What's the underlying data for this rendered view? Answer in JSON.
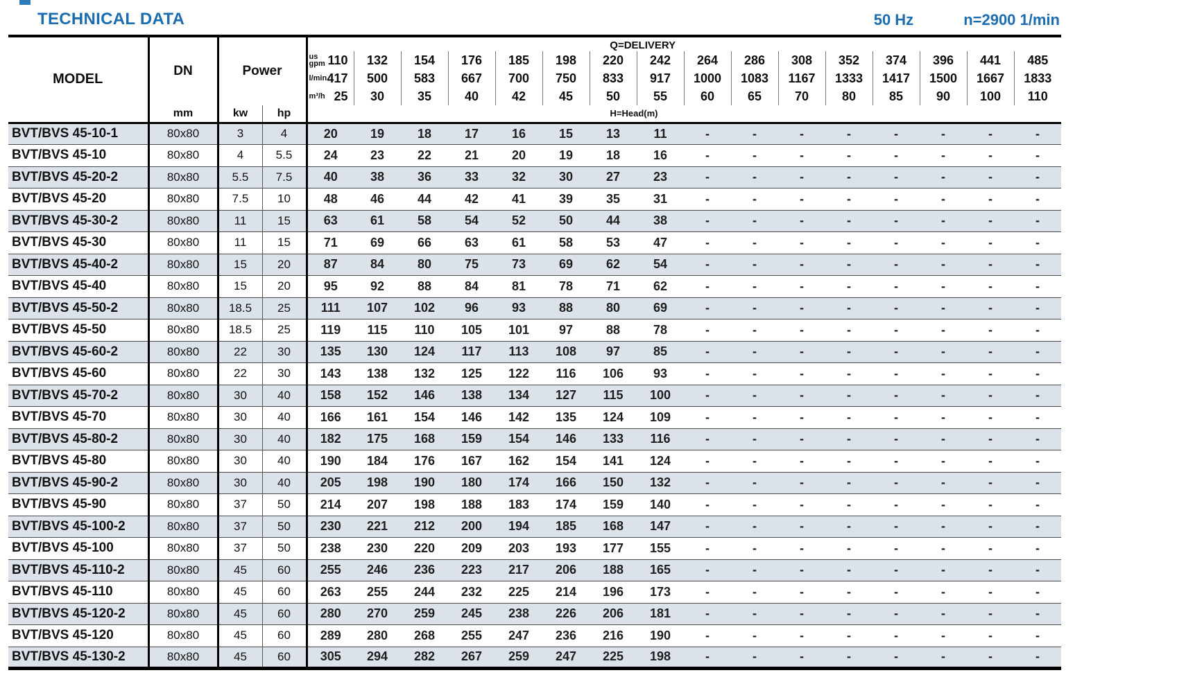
{
  "page": {
    "title": "TECHNICAL DATA",
    "frequency": "50 Hz",
    "speed": "n=2900 1/min"
  },
  "table": {
    "headers": {
      "model": "MODEL",
      "dn": "DN",
      "dn_unit": "mm",
      "power": "Power",
      "power_unit_kw": "kw",
      "power_unit_hp": "hp",
      "delivery": "Q=DELIVERY",
      "head": "H=Head(m)"
    },
    "delivery_units": [
      {
        "label": "us gpm",
        "values": [
          "110",
          "132",
          "154",
          "176",
          "185",
          "198",
          "220",
          "242",
          "264",
          "286",
          "308",
          "352",
          "374",
          "396",
          "441",
          "485"
        ]
      },
      {
        "label": "l/min",
        "values": [
          "417",
          "500",
          "583",
          "667",
          "700",
          "750",
          "833",
          "917",
          "1000",
          "1083",
          "1167",
          "1333",
          "1417",
          "1500",
          "1667",
          "1833"
        ]
      },
      {
        "label": "m³/h",
        "values": [
          "25",
          "30",
          "35",
          "40",
          "42",
          "45",
          "50",
          "55",
          "60",
          "65",
          "70",
          "80",
          "85",
          "90",
          "100",
          "110"
        ]
      }
    ],
    "rows": [
      {
        "model": "BVT/BVS 45-10-1",
        "dn": "80x80",
        "kw": "3",
        "hp": "4",
        "heads": [
          "20",
          "19",
          "18",
          "17",
          "16",
          "15",
          "13",
          "11",
          "-",
          "-",
          "-",
          "-",
          "-",
          "-",
          "-",
          "-"
        ]
      },
      {
        "model": "BVT/BVS 45-10",
        "dn": "80x80",
        "kw": "4",
        "hp": "5.5",
        "heads": [
          "24",
          "23",
          "22",
          "21",
          "20",
          "19",
          "18",
          "16",
          "-",
          "-",
          "-",
          "-",
          "-",
          "-",
          "-",
          "-"
        ]
      },
      {
        "model": "BVT/BVS 45-20-2",
        "dn": "80x80",
        "kw": "5.5",
        "hp": "7.5",
        "heads": [
          "40",
          "38",
          "36",
          "33",
          "32",
          "30",
          "27",
          "23",
          "-",
          "-",
          "-",
          "-",
          "-",
          "-",
          "-",
          "-"
        ]
      },
      {
        "model": "BVT/BVS 45-20",
        "dn": "80x80",
        "kw": "7.5",
        "hp": "10",
        "heads": [
          "48",
          "46",
          "44",
          "42",
          "41",
          "39",
          "35",
          "31",
          "-",
          "-",
          "-",
          "-",
          "-",
          "-",
          "-",
          "-"
        ]
      },
      {
        "model": "BVT/BVS 45-30-2",
        "dn": "80x80",
        "kw": "11",
        "hp": "15",
        "heads": [
          "63",
          "61",
          "58",
          "54",
          "52",
          "50",
          "44",
          "38",
          "-",
          "-",
          "-",
          "-",
          "-",
          "-",
          "-",
          "-"
        ]
      },
      {
        "model": "BVT/BVS 45-30",
        "dn": "80x80",
        "kw": "11",
        "hp": "15",
        "heads": [
          "71",
          "69",
          "66",
          "63",
          "61",
          "58",
          "53",
          "47",
          "-",
          "-",
          "-",
          "-",
          "-",
          "-",
          "-",
          "-"
        ]
      },
      {
        "model": "BVT/BVS 45-40-2",
        "dn": "80x80",
        "kw": "15",
        "hp": "20",
        "heads": [
          "87",
          "84",
          "80",
          "75",
          "73",
          "69",
          "62",
          "54",
          "-",
          "-",
          "-",
          "-",
          "-",
          "-",
          "-",
          "-"
        ]
      },
      {
        "model": "BVT/BVS 45-40",
        "dn": "80x80",
        "kw": "15",
        "hp": "20",
        "heads": [
          "95",
          "92",
          "88",
          "84",
          "81",
          "78",
          "71",
          "62",
          "-",
          "-",
          "-",
          "-",
          "-",
          "-",
          "-",
          "-"
        ]
      },
      {
        "model": "BVT/BVS 45-50-2",
        "dn": "80x80",
        "kw": "18.5",
        "hp": "25",
        "heads": [
          "111",
          "107",
          "102",
          "96",
          "93",
          "88",
          "80",
          "69",
          "-",
          "-",
          "-",
          "-",
          "-",
          "-",
          "-",
          "-"
        ]
      },
      {
        "model": "BVT/BVS 45-50",
        "dn": "80x80",
        "kw": "18.5",
        "hp": "25",
        "heads": [
          "119",
          "115",
          "110",
          "105",
          "101",
          "97",
          "88",
          "78",
          "-",
          "-",
          "-",
          "-",
          "-",
          "-",
          "-",
          "-"
        ]
      },
      {
        "model": "BVT/BVS 45-60-2",
        "dn": "80x80",
        "kw": "22",
        "hp": "30",
        "heads": [
          "135",
          "130",
          "124",
          "117",
          "113",
          "108",
          "97",
          "85",
          "-",
          "-",
          "-",
          "-",
          "-",
          "-",
          "-",
          "-"
        ]
      },
      {
        "model": "BVT/BVS 45-60",
        "dn": "80x80",
        "kw": "22",
        "hp": "30",
        "heads": [
          "143",
          "138",
          "132",
          "125",
          "122",
          "116",
          "106",
          "93",
          "-",
          "-",
          "-",
          "-",
          "-",
          "-",
          "-",
          "-"
        ]
      },
      {
        "model": "BVT/BVS 45-70-2",
        "dn": "80x80",
        "kw": "30",
        "hp": "40",
        "heads": [
          "158",
          "152",
          "146",
          "138",
          "134",
          "127",
          "115",
          "100",
          "-",
          "-",
          "-",
          "-",
          "-",
          "-",
          "-",
          "-"
        ]
      },
      {
        "model": "BVT/BVS 45-70",
        "dn": "80x80",
        "kw": "30",
        "hp": "40",
        "heads": [
          "166",
          "161",
          "154",
          "146",
          "142",
          "135",
          "124",
          "109",
          "-",
          "-",
          "-",
          "-",
          "-",
          "-",
          "-",
          "-"
        ]
      },
      {
        "model": "BVT/BVS 45-80-2",
        "dn": "80x80",
        "kw": "30",
        "hp": "40",
        "heads": [
          "182",
          "175",
          "168",
          "159",
          "154",
          "146",
          "133",
          "116",
          "-",
          "-",
          "-",
          "-",
          "-",
          "-",
          "-",
          "-"
        ]
      },
      {
        "model": "BVT/BVS 45-80",
        "dn": "80x80",
        "kw": "30",
        "hp": "40",
        "heads": [
          "190",
          "184",
          "176",
          "167",
          "162",
          "154",
          "141",
          "124",
          "-",
          "-",
          "-",
          "-",
          "-",
          "-",
          "-",
          "-"
        ]
      },
      {
        "model": "BVT/BVS 45-90-2",
        "dn": "80x80",
        "kw": "30",
        "hp": "40",
        "heads": [
          "205",
          "198",
          "190",
          "180",
          "174",
          "166",
          "150",
          "132",
          "-",
          "-",
          "-",
          "-",
          "-",
          "-",
          "-",
          "-"
        ]
      },
      {
        "model": "BVT/BVS 45-90",
        "dn": "80x80",
        "kw": "37",
        "hp": "50",
        "heads": [
          "214",
          "207",
          "198",
          "188",
          "183",
          "174",
          "159",
          "140",
          "-",
          "-",
          "-",
          "-",
          "-",
          "-",
          "-",
          "-"
        ]
      },
      {
        "model": "BVT/BVS 45-100-2",
        "dn": "80x80",
        "kw": "37",
        "hp": "50",
        "heads": [
          "230",
          "221",
          "212",
          "200",
          "194",
          "185",
          "168",
          "147",
          "-",
          "-",
          "-",
          "-",
          "-",
          "-",
          "-",
          "-"
        ]
      },
      {
        "model": "BVT/BVS 45-100",
        "dn": "80x80",
        "kw": "37",
        "hp": "50",
        "heads": [
          "238",
          "230",
          "220",
          "209",
          "203",
          "193",
          "177",
          "155",
          "-",
          "-",
          "-",
          "-",
          "-",
          "-",
          "-",
          "-"
        ]
      },
      {
        "model": "BVT/BVS 45-110-2",
        "dn": "80x80",
        "kw": "45",
        "hp": "60",
        "heads": [
          "255",
          "246",
          "236",
          "223",
          "217",
          "206",
          "188",
          "165",
          "-",
          "-",
          "-",
          "-",
          "-",
          "-",
          "-",
          "-"
        ]
      },
      {
        "model": "BVT/BVS 45-110",
        "dn": "80x80",
        "kw": "45",
        "hp": "60",
        "heads": [
          "263",
          "255",
          "244",
          "232",
          "225",
          "214",
          "196",
          "173",
          "-",
          "-",
          "-",
          "-",
          "-",
          "-",
          "-",
          "-"
        ]
      },
      {
        "model": "BVT/BVS 45-120-2",
        "dn": "80x80",
        "kw": "45",
        "hp": "60",
        "heads": [
          "280",
          "270",
          "259",
          "245",
          "238",
          "226",
          "206",
          "181",
          "-",
          "-",
          "-",
          "-",
          "-",
          "-",
          "-",
          "-"
        ]
      },
      {
        "model": "BVT/BVS 45-120",
        "dn": "80x80",
        "kw": "45",
        "hp": "60",
        "heads": [
          "289",
          "280",
          "268",
          "255",
          "247",
          "236",
          "216",
          "190",
          "-",
          "-",
          "-",
          "-",
          "-",
          "-",
          "-",
          "-"
        ]
      },
      {
        "model": "BVT/BVS 45-130-2",
        "dn": "80x80",
        "kw": "45",
        "hp": "60",
        "heads": [
          "305",
          "294",
          "282",
          "267",
          "259",
          "247",
          "225",
          "198",
          "-",
          "-",
          "-",
          "-",
          "-",
          "-",
          "-",
          "-"
        ]
      }
    ]
  }
}
